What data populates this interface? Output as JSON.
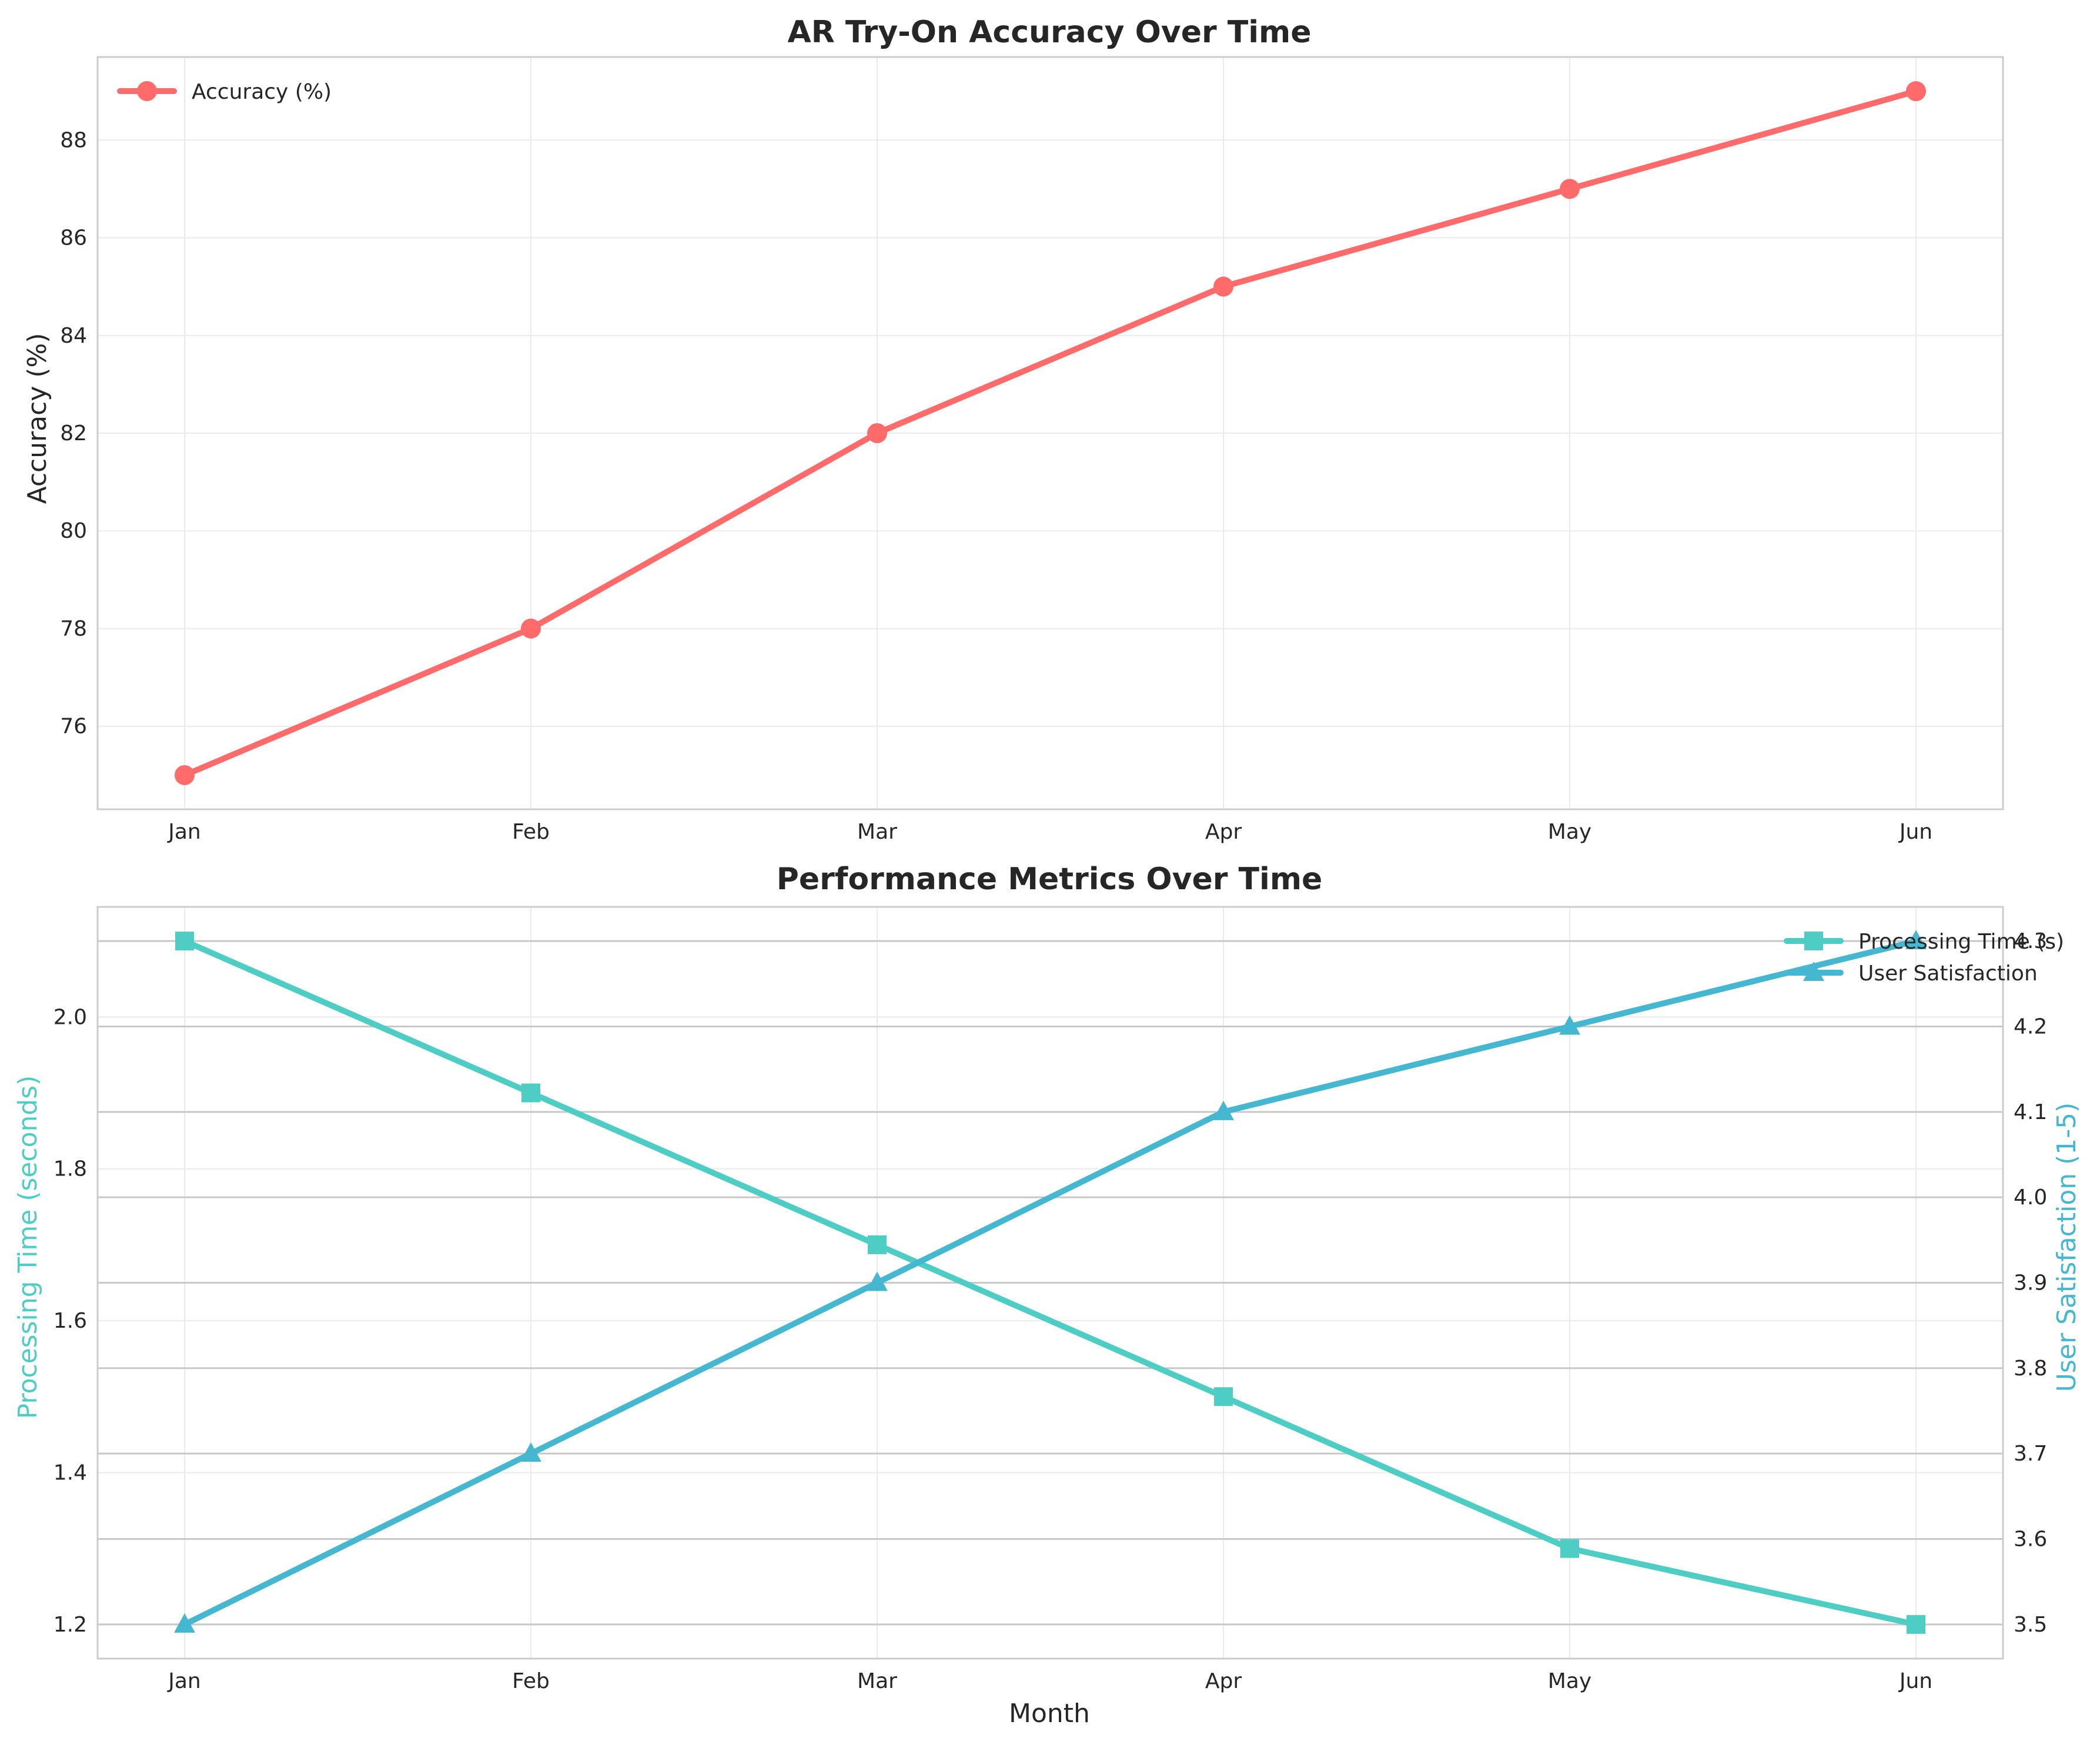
{
  "chart_data": [
    {
      "type": "line",
      "title": "AR Try-On Accuracy Over Time",
      "xlabel": "",
      "ylabel": "Accuracy (%)",
      "categories": [
        "Jan",
        "Feb",
        "Mar",
        "Apr",
        "May",
        "Jun"
      ],
      "ylim": [
        74.3,
        89.7
      ],
      "yticks": [
        76,
        78,
        80,
        82,
        84,
        86,
        88
      ],
      "grid": true,
      "legend_position": "top-left",
      "series": [
        {
          "name": "Accuracy (%)",
          "values": [
            75,
            78,
            82,
            85,
            87,
            89
          ],
          "color": "#ff6b6b",
          "marker": "circle"
        }
      ]
    },
    {
      "type": "line",
      "title": "Performance Metrics Over Time",
      "xlabel": "Month",
      "ylabel": "Processing Time (seconds)",
      "ylabel_right": "User Satisfaction (1-5)",
      "categories": [
        "Jan",
        "Feb",
        "Mar",
        "Apr",
        "May",
        "Jun"
      ],
      "ylim": [
        1.155,
        2.145
      ],
      "yticks": [
        1.2,
        1.4,
        1.6,
        1.8,
        2.0
      ],
      "ylim_right": [
        3.46,
        4.34
      ],
      "yticks_right": [
        3.5,
        3.6,
        3.7,
        3.8,
        3.9,
        4.0,
        4.1,
        4.2,
        4.3
      ],
      "grid": true,
      "legend_position": "top-right",
      "series": [
        {
          "name": "Processing Time (s)",
          "values": [
            2.1,
            1.9,
            1.7,
            1.5,
            1.3,
            1.2
          ],
          "color": "#4ecdc4",
          "marker": "square",
          "axis": "left"
        },
        {
          "name": "User Satisfaction",
          "values": [
            3.5,
            3.7,
            3.9,
            4.1,
            4.2,
            4.3
          ],
          "color": "#45b7d1",
          "marker": "triangle",
          "axis": "right"
        }
      ]
    }
  ]
}
